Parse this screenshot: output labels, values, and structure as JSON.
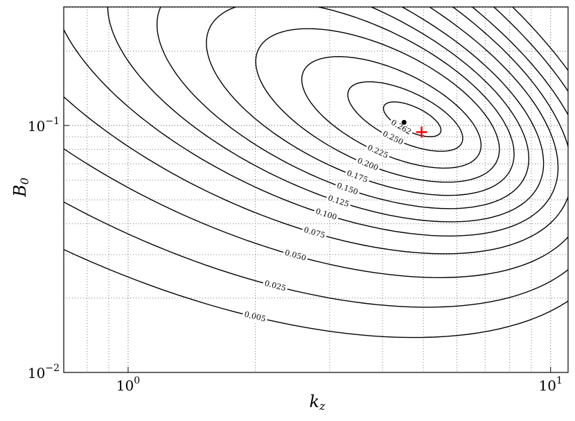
{
  "chart_data": {
    "type": "contour",
    "x_label": "k",
    "x_label_sub": "z",
    "y_label": "B",
    "y_label_sub": "0",
    "xscale": "log",
    "yscale": "log",
    "grid": true,
    "xlim": [
      0.704,
      11
    ],
    "ylim": [
      0.01,
      0.302
    ],
    "xticks": [
      {
        "value": 1,
        "label": "10",
        "exponent": "0"
      },
      {
        "value": 10,
        "label": "10",
        "exponent": "1"
      }
    ],
    "yticks": [
      {
        "value": 0.01,
        "label": "10",
        "exponent": "−2"
      },
      {
        "value": 0.1,
        "label": "10",
        "exponent": "−1"
      }
    ],
    "levels": [
      0.262,
      0.25,
      0.225,
      0.2,
      0.175,
      0.15,
      0.125,
      0.1,
      0.075,
      0.05,
      0.025,
      0.005
    ],
    "value_labels": [
      "0.262",
      "0.250",
      "0.225",
      "0.200",
      "0.175",
      "0.150",
      "0.125",
      "0.100",
      "0.075",
      "0.050",
      "0.025",
      "0.005"
    ],
    "line_color": "#000000",
    "series": [
      {
        "color": "#000000",
        "marker": "dot",
        "x": [
          4.5
        ],
        "values": [
          0.103
        ]
      },
      {
        "color": "#ff0000",
        "marker": "plus",
        "x": [
          4.95
        ],
        "values": [
          0.094
        ]
      }
    ]
  }
}
